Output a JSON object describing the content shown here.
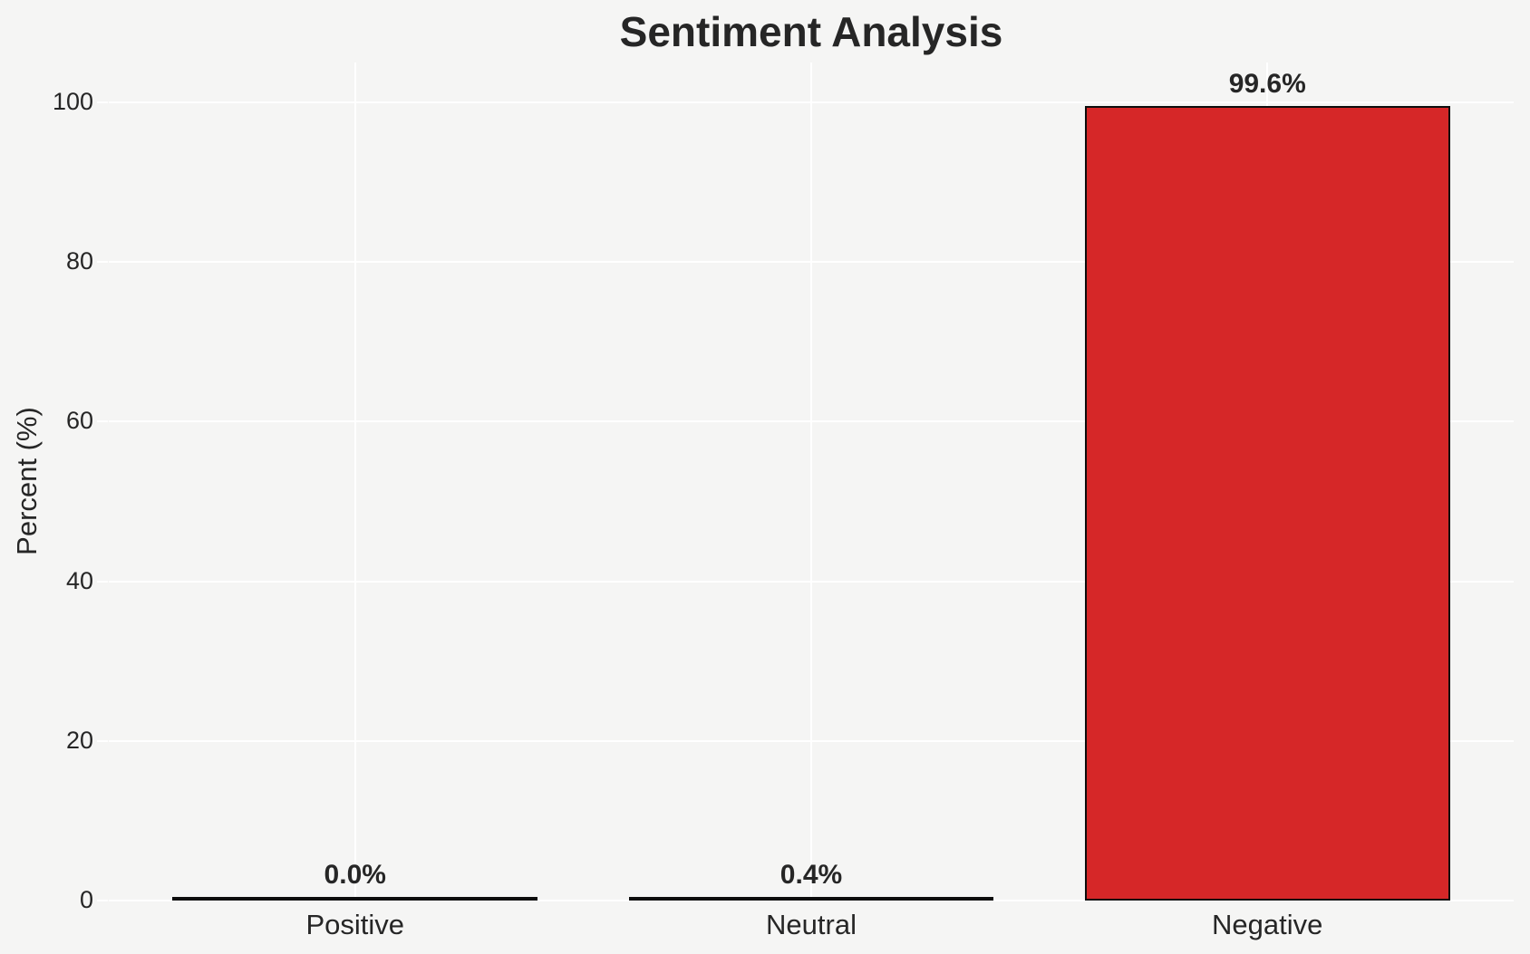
{
  "figure": {
    "background": "#f5f5f4"
  },
  "chart_data": {
    "type": "bar",
    "title": "Sentiment Analysis",
    "ylabel": "Percent (%)",
    "xlabel": "",
    "categories": [
      "Positive",
      "Neutral",
      "Negative"
    ],
    "values": [
      0.0,
      0.4,
      99.6
    ],
    "bar_labels": [
      "0.0%",
      "0.4%",
      "99.6%"
    ],
    "bar_fill_colors": [
      null,
      null,
      "#d62728"
    ],
    "bar_edge_color": "#0d0d0d",
    "yticks": [
      0,
      20,
      40,
      60,
      80,
      100
    ],
    "ylim": [
      0,
      105
    ],
    "grid": true,
    "grid_color": "#ffffff",
    "text_color": "#262626",
    "legend_position": "none"
  }
}
